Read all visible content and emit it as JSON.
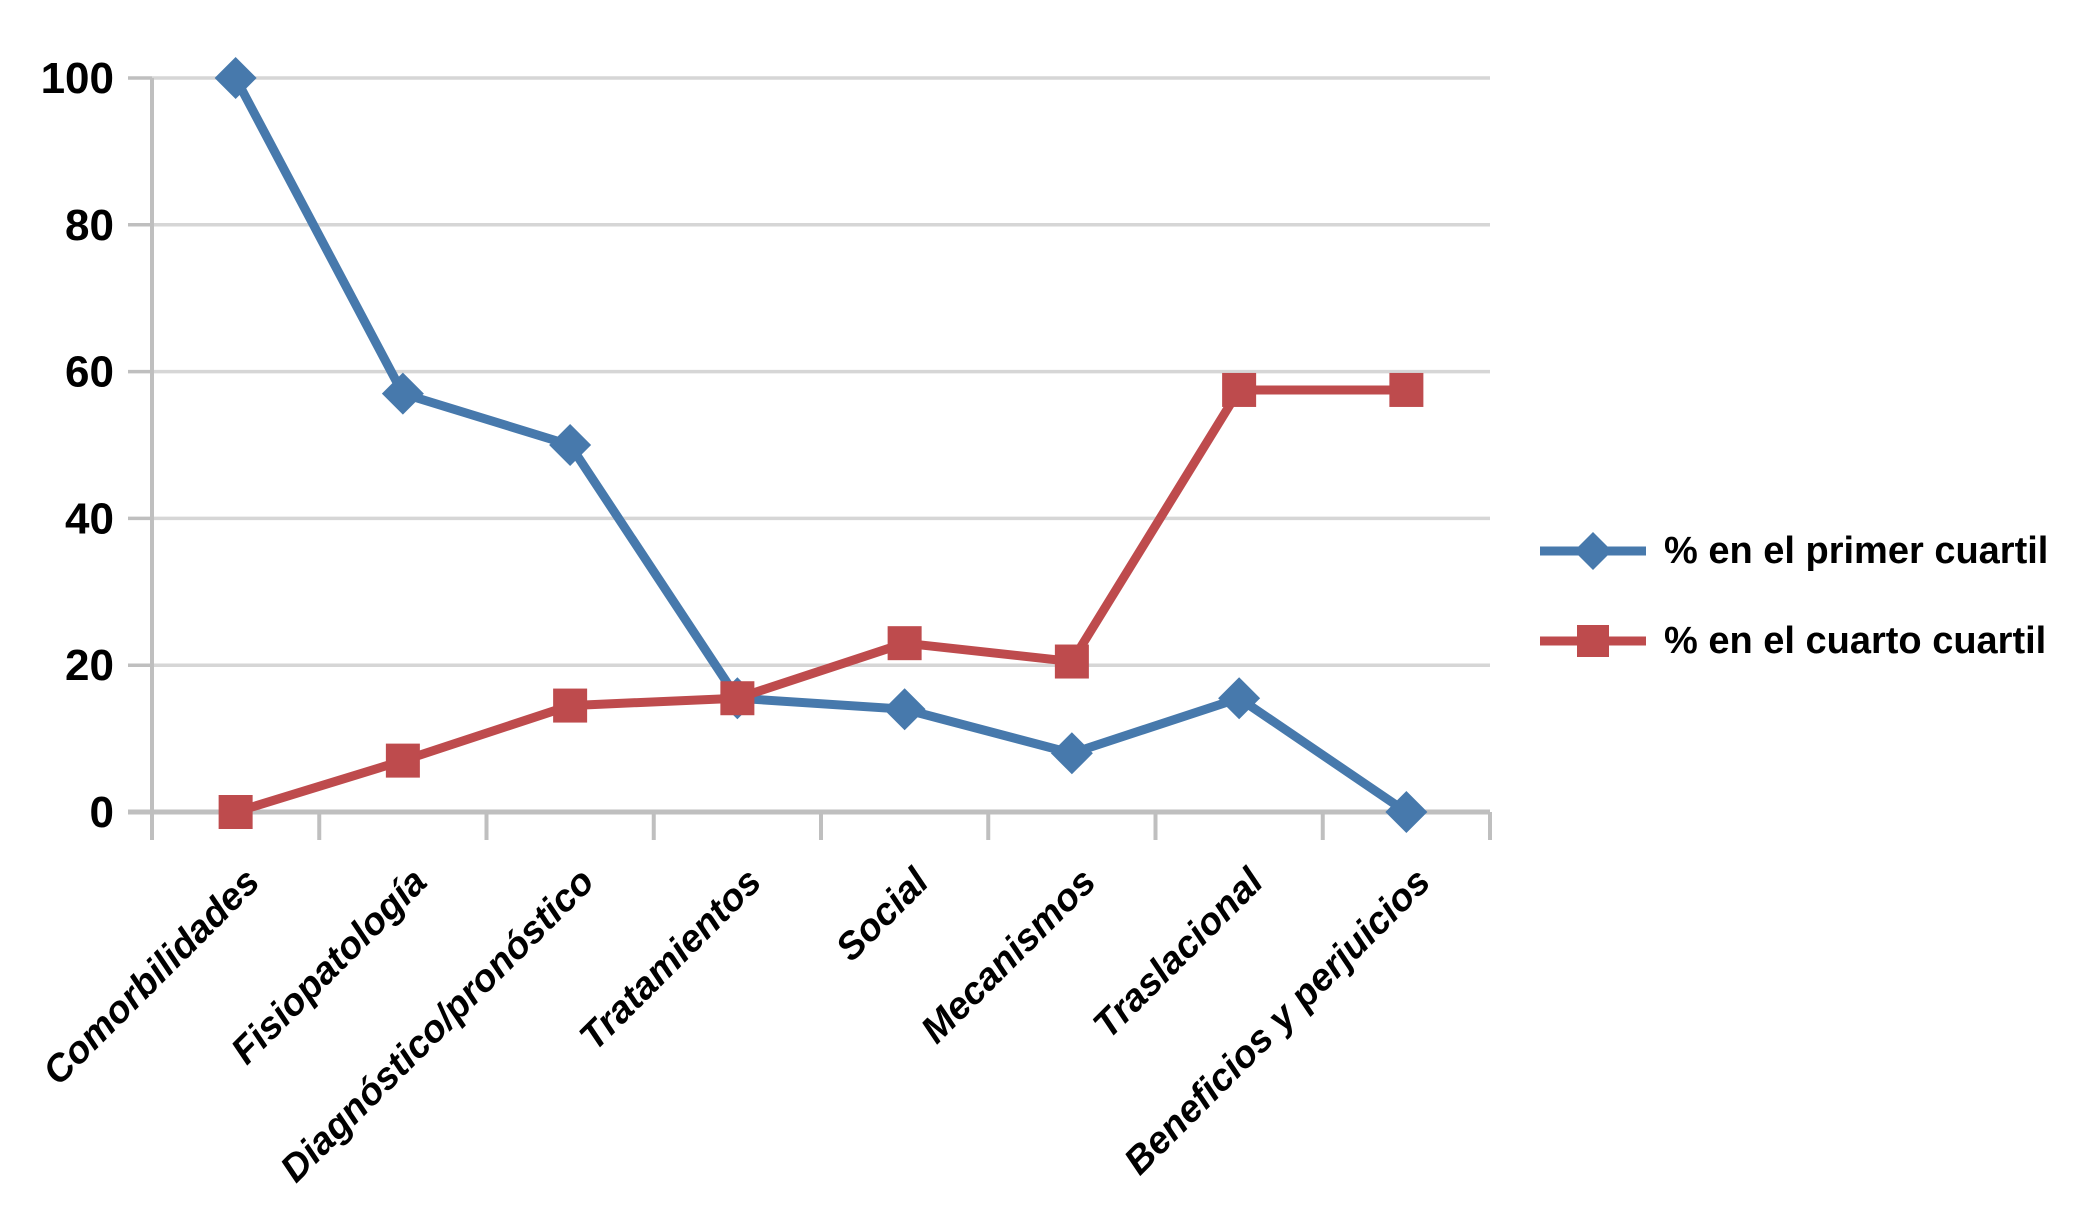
{
  "chart_data": {
    "type": "line",
    "title": "",
    "xlabel": "",
    "ylabel": "",
    "categories": [
      "Comorbilidades",
      "Fisiopatología",
      "Diagnóstico/pronóstico",
      "Tratamientos",
      "Social",
      "Mecanismos",
      "Traslacional",
      "Beneficios y perjuicios"
    ],
    "series": [
      {
        "name": "% en el primer cuartil",
        "marker": "diamond",
        "color": "#4779AC",
        "values": [
          100,
          57,
          50,
          15.5,
          14,
          8,
          15.5,
          0
        ]
      },
      {
        "name": "% en el cuarto cuartil",
        "marker": "square",
        "color": "#BE4B4D",
        "values": [
          0,
          7,
          14.5,
          15.5,
          23,
          20.5,
          57.5,
          57.5
        ]
      }
    ],
    "yticks": [
      0,
      20,
      40,
      60,
      80,
      100
    ],
    "ylim": [
      0,
      100
    ],
    "grid": true,
    "legend_position": "right"
  },
  "colors": {
    "gridline": "#D6D6D6",
    "axis": "#BFBFBF",
    "text": "#000000",
    "background": "#FFFFFF"
  }
}
